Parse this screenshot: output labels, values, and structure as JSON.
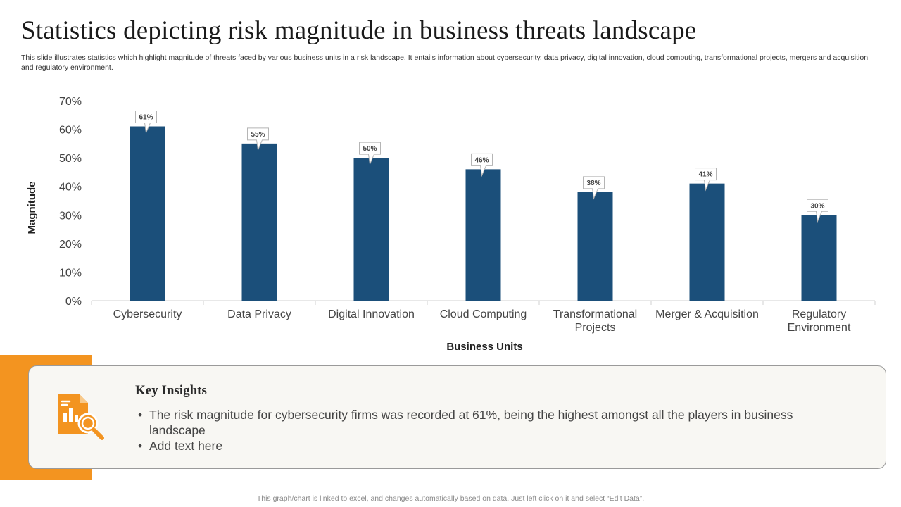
{
  "page": {
    "title": "Statistics depicting risk magnitude in business threats landscape",
    "subtitle": "This slide illustrates statistics which highlight magnitude of threats faced by various business units in a risk landscape. It entails information about cybersecurity, data privacy,  digital innovation, cloud computing, transformational projects, mergers and acquisition and regulatory environment.",
    "footer": "This graph/chart is linked to excel,  and changes automatically based on data. Just left click on it and select “Edit Data”."
  },
  "colors": {
    "bar": "#1b4f7a",
    "accent": "#f39420",
    "axis": "#d0d0d0"
  },
  "chart_data": {
    "type": "bar",
    "title": "",
    "xlabel": "Business Units",
    "ylabel": "Magnitude",
    "categories": [
      [
        "Cybersecurity"
      ],
      [
        "Data Privacy"
      ],
      [
        "Digital Innovation"
      ],
      [
        "Cloud Computing"
      ],
      [
        "Transformational",
        "Projects"
      ],
      [
        "Merger & Acquisition"
      ],
      [
        "Regulatory",
        "Environment"
      ]
    ],
    "values": [
      61,
      55,
      50,
      46,
      38,
      41,
      30
    ],
    "data_labels": [
      "61%",
      "55%",
      "50%",
      "46%",
      "38%",
      "41%",
      "30%"
    ],
    "ylim": [
      0,
      70
    ],
    "yticks": [
      0,
      10,
      20,
      30,
      40,
      50,
      60,
      70
    ],
    "ytick_labels": [
      "0%",
      "10%",
      "20%",
      "30%",
      "40%",
      "50%",
      "60%",
      "70%"
    ],
    "grid": false,
    "legend": "none"
  },
  "insights": {
    "title": "Key Insights",
    "icon": "chart-analysis-icon",
    "bullets": [
      "The risk magnitude for cybersecurity firms was recorded at 61%, being the highest amongst all the players in business landscape",
      "Add text here"
    ]
  }
}
